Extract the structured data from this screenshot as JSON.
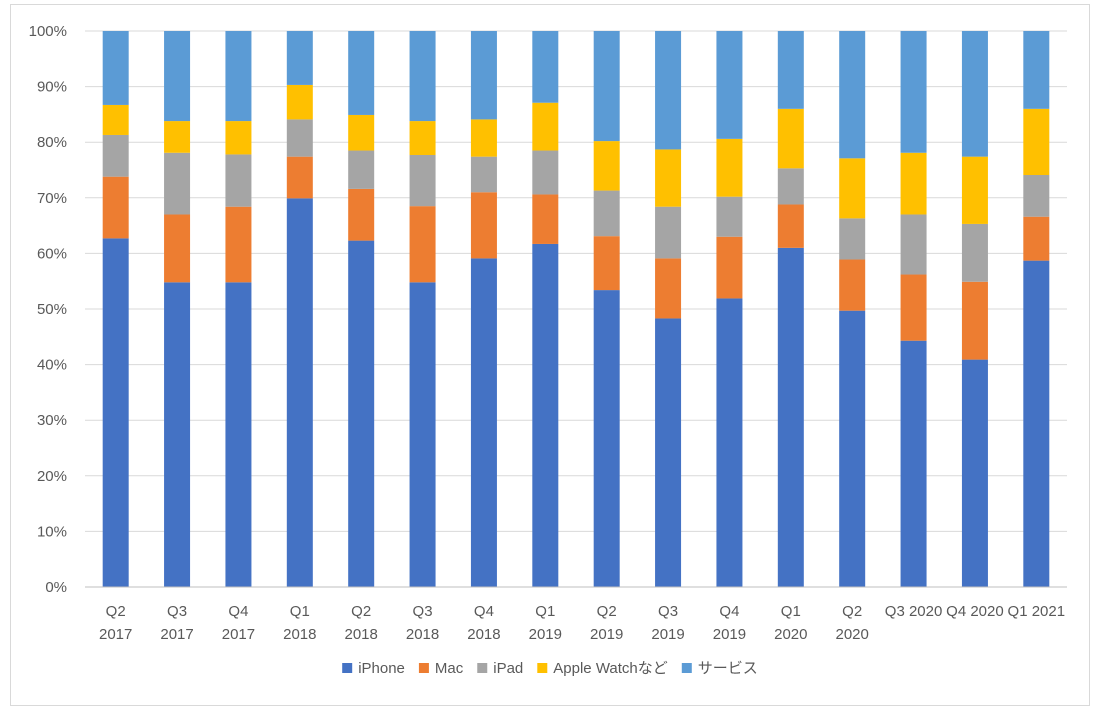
{
  "chart_data": {
    "type": "bar",
    "stacked": true,
    "title": "",
    "xlabel": "",
    "ylabel": "",
    "ylim": [
      0,
      100
    ],
    "y_ticks": [
      "0%",
      "10%",
      "20%",
      "30%",
      "40%",
      "50%",
      "60%",
      "70%",
      "80%",
      "90%",
      "100%"
    ],
    "categories": [
      {
        "line1": "Q2",
        "line2": "2017"
      },
      {
        "line1": "Q3",
        "line2": "2017"
      },
      {
        "line1": "Q4",
        "line2": "2017"
      },
      {
        "line1": "Q1",
        "line2": "2018"
      },
      {
        "line1": "Q2",
        "line2": "2018"
      },
      {
        "line1": "Q3",
        "line2": "2018"
      },
      {
        "line1": "Q4",
        "line2": "2018"
      },
      {
        "line1": "Q1",
        "line2": "2019"
      },
      {
        "line1": "Q2",
        "line2": "2019"
      },
      {
        "line1": "Q3",
        "line2": "2019"
      },
      {
        "line1": "Q4",
        "line2": "2019"
      },
      {
        "line1": "Q1",
        "line2": "2020"
      },
      {
        "line1": "Q2",
        "line2": "2020"
      },
      {
        "line1": "Q3 2020",
        "line2": ""
      },
      {
        "line1": "Q4 2020",
        "line2": ""
      },
      {
        "line1": "Q1 2021",
        "line2": ""
      }
    ],
    "series": [
      {
        "name": "iPhone",
        "color": "#4472C4",
        "values": [
          62.7,
          54.8,
          54.8,
          69.9,
          62.3,
          54.8,
          59.1,
          61.7,
          53.4,
          48.3,
          51.9,
          61.0,
          49.7,
          44.3,
          40.9,
          58.7
        ]
      },
      {
        "name": "Mac",
        "color": "#ED7D31",
        "values": [
          11.1,
          12.2,
          13.6,
          7.5,
          9.3,
          13.7,
          11.9,
          8.9,
          9.7,
          10.8,
          11.1,
          7.8,
          9.2,
          11.9,
          14.0,
          7.9
        ]
      },
      {
        "name": "iPad",
        "color": "#A5A5A5",
        "values": [
          7.5,
          11.1,
          9.4,
          6.7,
          6.9,
          9.2,
          6.4,
          7.9,
          8.2,
          9.3,
          7.2,
          6.5,
          7.4,
          10.8,
          10.4,
          7.5
        ]
      },
      {
        "name": "Apple Watchなど",
        "color": "#FFC000",
        "values": [
          5.4,
          5.7,
          6.0,
          6.2,
          6.4,
          6.1,
          6.7,
          8.6,
          8.9,
          10.3,
          10.4,
          10.7,
          10.8,
          11.1,
          12.1,
          11.9
        ]
      },
      {
        "name": "サービス",
        "color": "#5B9BD5",
        "values": [
          13.3,
          16.2,
          16.2,
          9.7,
          15.1,
          16.2,
          15.9,
          12.9,
          19.8,
          21.3,
          19.4,
          14.0,
          22.9,
          21.9,
          22.6,
          14.0
        ]
      }
    ],
    "legend_position": "bottom",
    "grid": true
  }
}
